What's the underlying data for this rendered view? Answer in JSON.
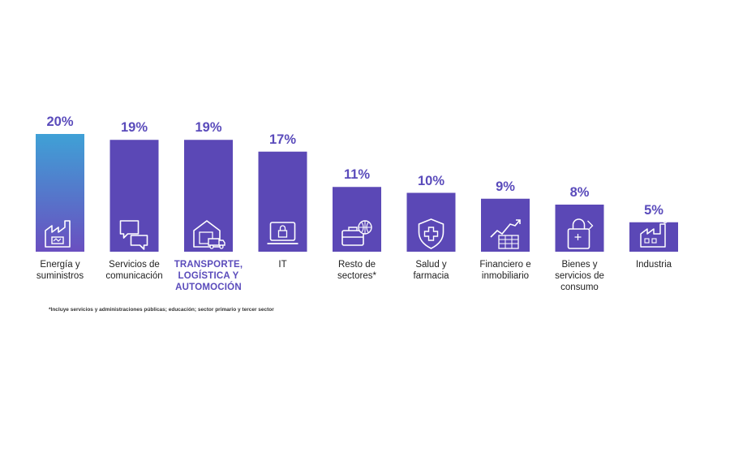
{
  "chart_data": {
    "type": "bar",
    "categories": [
      "Energía y\nsuministros",
      "Servicios de\ncomunicación",
      "TRANSPORTE,\nLOGÍSTICA Y\nAUTOMOCIÓN",
      "IT",
      "Resto de\nsectores*",
      "Salud y\nfarmacia",
      "Financiero e\ninmobiliario",
      "Bienes y\nservicios de\nconsumo",
      "Industria"
    ],
    "values": [
      20,
      19,
      19,
      17,
      11,
      10,
      9,
      8,
      5
    ],
    "value_labels": [
      "20%",
      "19%",
      "19%",
      "17%",
      "11%",
      "10%",
      "9%",
      "8%",
      "5%"
    ],
    "highlighted_index": 2,
    "icons": [
      "factory-icon",
      "chat-bubbles-icon",
      "warehouse-truck-icon",
      "laptop-lock-icon",
      "briefcase-globe-icon",
      "shield-cross-icon",
      "chart-growth-icon",
      "shopping-bag-icon",
      "factory-building-icon"
    ],
    "colors": {
      "bar": "#5b48b6",
      "gradient_top": "#3fa1d6",
      "gradient_bottom": "#6a4fc0",
      "label_highlight": "#5a4bbb",
      "value_text": "#5a4bbb"
    },
    "ylim": [
      0,
      20
    ],
    "footnote": "*Incluye servicios y administraciones públicas; educación; sector primario y tercer sector"
  }
}
